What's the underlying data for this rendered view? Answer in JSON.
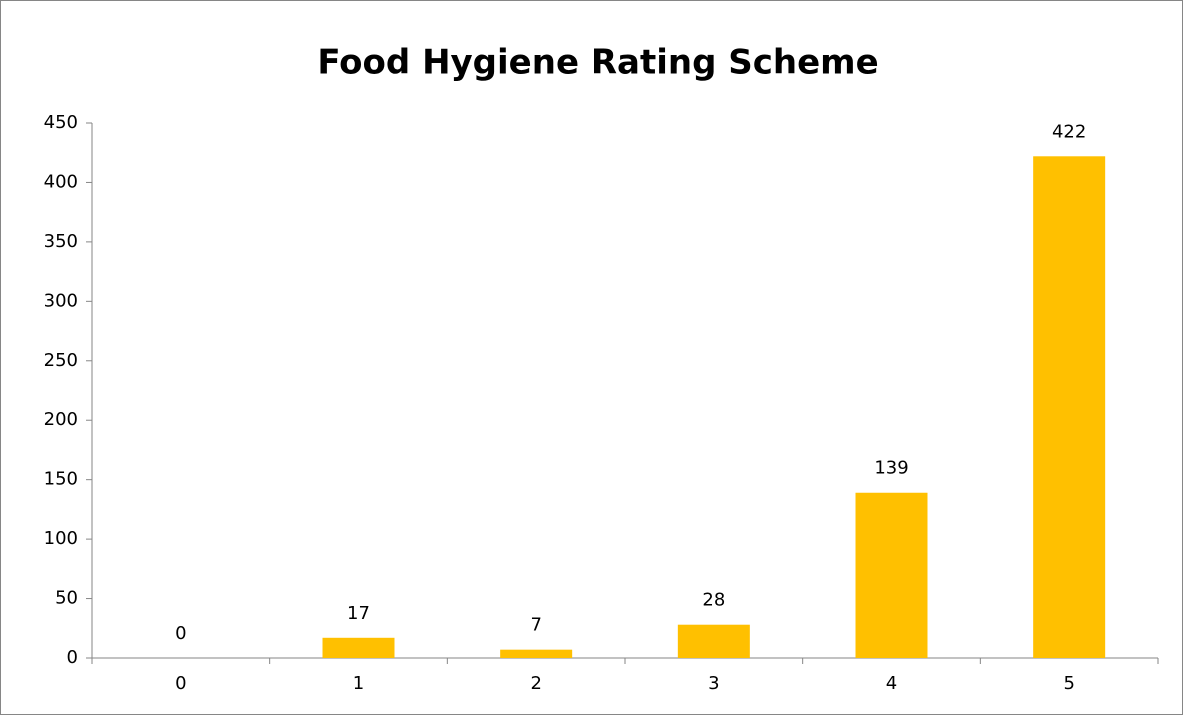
{
  "chart_data": {
    "type": "bar",
    "title": "Food Hygiene Rating Scheme",
    "categories": [
      "0",
      "1",
      "2",
      "3",
      "4",
      "5"
    ],
    "values": [
      0,
      17,
      7,
      28,
      139,
      422
    ],
    "color": "#ffc000",
    "ylim": [
      0,
      450
    ],
    "yticks": [
      0,
      50,
      100,
      150,
      200,
      250,
      300,
      350,
      400,
      450
    ],
    "grid": false
  }
}
